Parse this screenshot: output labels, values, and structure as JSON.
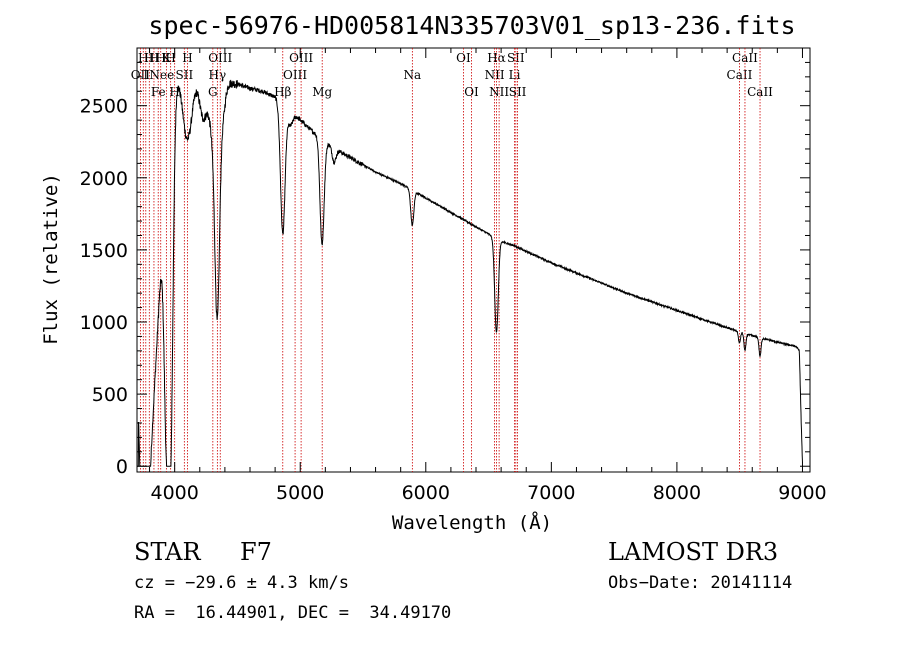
{
  "chart_data": {
    "type": "line",
    "title": "spec-56976-HD005814N335703V01_sp13-236.fits",
    "xlabel": "Wavelength (Å)",
    "ylabel": "Flux (relative)",
    "xlim": [
      3700,
      9060
    ],
    "ylim": [
      -40,
      2900
    ],
    "x_ticks": [
      {
        "value": 4000,
        "label": "4000"
      },
      {
        "value": 5000,
        "label": "5000"
      },
      {
        "value": 6000,
        "label": "6000"
      },
      {
        "value": 7000,
        "label": "7000"
      },
      {
        "value": 8000,
        "label": "8000"
      },
      {
        "value": 9000,
        "label": "9000"
      }
    ],
    "y_ticks": [
      {
        "value": 0,
        "label": "0"
      },
      {
        "value": 500,
        "label": "500"
      },
      {
        "value": 1000,
        "label": "1000"
      },
      {
        "value": 1500,
        "label": "1500"
      },
      {
        "value": 2000,
        "label": "2000"
      },
      {
        "value": 2500,
        "label": "2500"
      }
    ],
    "grid": false,
    "series": [
      {
        "name": "Flux",
        "continuum": [
          [
            3700,
            0
          ],
          [
            3705,
            800
          ],
          [
            3712,
            2450
          ],
          [
            3725,
            2600
          ],
          [
            3760,
            2650
          ],
          [
            3800,
            2600
          ],
          [
            3850,
            2700
          ],
          [
            3900,
            2750
          ],
          [
            3950,
            2800
          ],
          [
            4000,
            2800
          ],
          [
            4050,
            2800
          ],
          [
            4100,
            2770
          ],
          [
            4150,
            2760
          ],
          [
            4200,
            2740
          ],
          [
            4300,
            2690
          ],
          [
            4400,
            2660
          ],
          [
            4500,
            2650
          ],
          [
            4600,
            2620
          ],
          [
            4700,
            2600
          ],
          [
            4800,
            2560
          ],
          [
            4880,
            2500
          ],
          [
            4950,
            2440
          ],
          [
            5000,
            2400
          ],
          [
            5100,
            2320
          ],
          [
            5200,
            2250
          ],
          [
            5300,
            2190
          ],
          [
            5400,
            2140
          ],
          [
            5500,
            2090
          ],
          [
            5600,
            2040
          ],
          [
            5700,
            2000
          ],
          [
            5800,
            1960
          ],
          [
            5900,
            1910
          ],
          [
            6000,
            1860
          ],
          [
            6100,
            1810
          ],
          [
            6200,
            1760
          ],
          [
            6300,
            1710
          ],
          [
            6400,
            1660
          ],
          [
            6500,
            1610
          ],
          [
            6600,
            1560
          ],
          [
            6700,
            1530
          ],
          [
            6800,
            1490
          ],
          [
            6900,
            1450
          ],
          [
            7000,
            1410
          ],
          [
            7200,
            1340
          ],
          [
            7400,
            1270
          ],
          [
            7600,
            1200
          ],
          [
            7800,
            1140
          ],
          [
            8000,
            1080
          ],
          [
            8200,
            1020
          ],
          [
            8400,
            960
          ],
          [
            8600,
            905
          ],
          [
            8800,
            860
          ],
          [
            8950,
            830
          ],
          [
            8975,
            800
          ],
          [
            8990,
            300
          ],
          [
            9000,
            20
          ]
        ],
        "absorption": [
          [
            3720,
            30,
            900
          ],
          [
            3735,
            40,
            800
          ],
          [
            3750,
            30,
            700
          ],
          [
            3770,
            30,
            1000
          ],
          [
            3798,
            40,
            900
          ],
          [
            3835,
            40,
            800
          ],
          [
            3889,
            60,
            1000
          ],
          [
            3933.7,
            18,
            1600
          ],
          [
            3968.5,
            18,
            1700
          ],
          [
            3970,
            20,
            500
          ],
          [
            4101,
            40,
            500
          ],
          [
            4226,
            30,
            300
          ],
          [
            4300,
            30,
            200
          ],
          [
            4325,
            30,
            300
          ],
          [
            4340,
            18,
            1300
          ],
          [
            4384,
            20,
            200
          ],
          [
            4861,
            18,
            900
          ],
          [
            4920,
            20,
            100
          ],
          [
            5167,
            15,
            250
          ],
          [
            5172,
            15,
            300
          ],
          [
            5183,
            15,
            250
          ],
          [
            5270,
            15,
            100
          ],
          [
            5890,
            12,
            150
          ],
          [
            5896,
            12,
            100
          ],
          [
            6563,
            14,
            650
          ],
          [
            8498,
            8,
            80
          ],
          [
            8542,
            8,
            120
          ],
          [
            8662,
            8,
            130
          ]
        ]
      }
    ],
    "line_ids": [
      {
        "wavelength": 3727,
        "labels": [
          {
            "text": "OII",
            "row": 2
          }
        ]
      },
      {
        "wavelength": 3750,
        "labels": [
          {
            "text": "H",
            "row": 1
          }
        ]
      },
      {
        "wavelength": 3770,
        "labels": [
          {
            "text": "I",
            "row": 2
          }
        ]
      },
      {
        "wavelength": 3798,
        "labels": [
          {
            "text": "H",
            "row": 1
          }
        ]
      },
      {
        "wavelength": 3835,
        "labels": [
          {
            "text": "H",
            "row": 1
          }
        ]
      },
      {
        "wavelength": 3869,
        "labels": [
          {
            "text": "Ne",
            "row": 2
          },
          {
            "text": "Fe",
            "row": 3
          }
        ]
      },
      {
        "wavelength": 3889,
        "labels": [
          {
            "text": "H",
            "row": 1
          }
        ]
      },
      {
        "wavelength": 3934,
        "labels": [
          {
            "text": "K",
            "row": 1
          }
        ]
      },
      {
        "wavelength": 3968,
        "labels": [
          {
            "text": "H",
            "row": 1
          },
          {
            "text": "e",
            "row": 2
          }
        ]
      },
      {
        "wavelength": 4000,
        "labels": [
          {
            "text": "H",
            "row": 3
          }
        ]
      },
      {
        "wavelength": 4077,
        "labels": [
          {
            "text": "SII",
            "row": 2
          }
        ]
      },
      {
        "wavelength": 4102,
        "labels": [
          {
            "text": "H",
            "row": 1
          }
        ]
      },
      {
        "wavelength": 4304,
        "labels": [
          {
            "text": "G",
            "row": 3
          }
        ]
      },
      {
        "wavelength": 4340,
        "labels": [
          {
            "text": "Hγ",
            "row": 2
          }
        ]
      },
      {
        "wavelength": 4363,
        "labels": [
          {
            "text": "OIII",
            "row": 1
          }
        ]
      },
      {
        "wavelength": 4861,
        "labels": [
          {
            "text": "Hβ",
            "row": 3
          }
        ]
      },
      {
        "wavelength": 4959,
        "labels": [
          {
            "text": "OIII",
            "row": 2
          }
        ]
      },
      {
        "wavelength": 5007,
        "labels": [
          {
            "text": "OIII",
            "row": 1
          }
        ]
      },
      {
        "wavelength": 5175,
        "labels": [
          {
            "text": "Mg",
            "row": 3
          }
        ]
      },
      {
        "wavelength": 5893,
        "labels": [
          {
            "text": "Na",
            "row": 2
          }
        ]
      },
      {
        "wavelength": 6300,
        "labels": [
          {
            "text": "OI",
            "row": 1
          }
        ]
      },
      {
        "wavelength": 6364,
        "labels": [
          {
            "text": "OI",
            "row": 3
          }
        ]
      },
      {
        "wavelength": 6548,
        "labels": [
          {
            "text": "NII",
            "row": 2
          }
        ]
      },
      {
        "wavelength": 6563,
        "labels": [
          {
            "text": "Hα",
            "row": 1
          }
        ]
      },
      {
        "wavelength": 6584,
        "labels": [
          {
            "text": "NII",
            "row": 3
          }
        ]
      },
      {
        "wavelength": 6707,
        "labels": [
          {
            "text": "Li",
            "row": 2
          }
        ]
      },
      {
        "wavelength": 6717,
        "labels": [
          {
            "text": "SII",
            "row": 1
          }
        ]
      },
      {
        "wavelength": 6731,
        "labels": [
          {
            "text": "SII",
            "row": 3
          }
        ]
      },
      {
        "wavelength": 8498,
        "labels": [
          {
            "text": "CaII",
            "row": 2
          }
        ]
      },
      {
        "wavelength": 8542,
        "labels": [
          {
            "text": "CaII",
            "row": 1
          }
        ]
      },
      {
        "wavelength": 8662,
        "labels": [
          {
            "text": "CaII",
            "row": 3
          }
        ]
      }
    ]
  },
  "info": {
    "object_class": "STAR",
    "subclass": "F7",
    "survey": "LAMOST DR3",
    "redshift": "cz = −29.6 ± 4.3 km/s",
    "obs_date": "Obs−Date: 20141114",
    "coords": "RA =  16.44901, DEC =  34.49170"
  },
  "colors": {
    "spectrum": "#000000",
    "line_marker": "#cc0000",
    "axis": "#000000",
    "background": "#ffffff"
  }
}
